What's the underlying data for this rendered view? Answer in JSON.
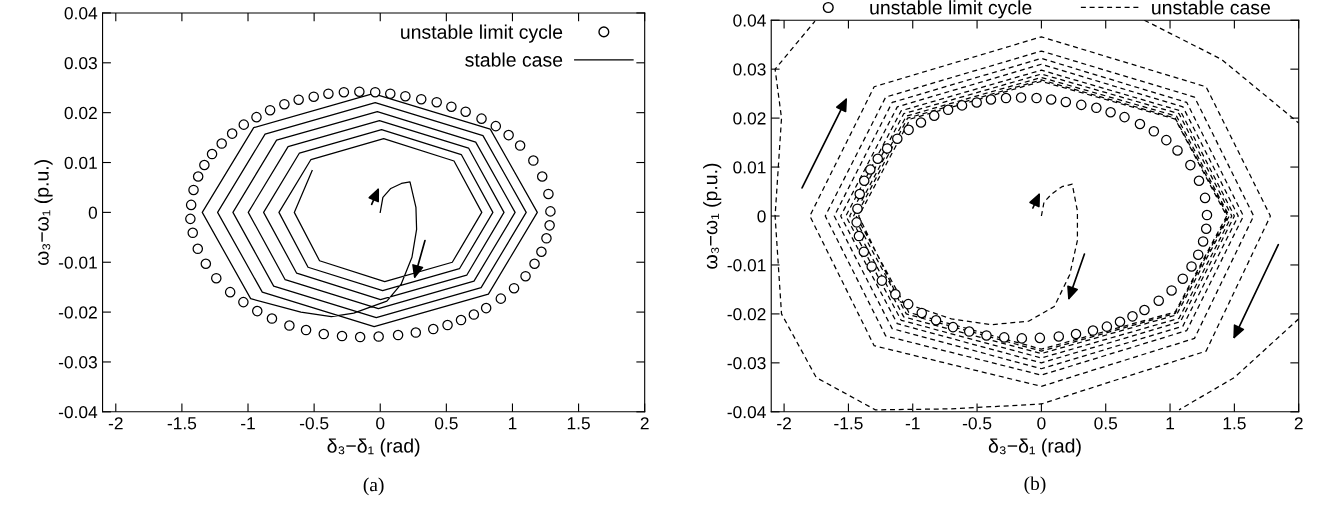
{
  "chart_data": [
    {
      "type": "line",
      "xlabel": "δ₃−δ₁ (rad)",
      "ylabel": "ω₃−ω₁ (p.u.)",
      "annotations": [
        "(a)"
      ],
      "xlim": [
        -2.1,
        2
      ],
      "ylim": [
        -0.04,
        0.04
      ],
      "xticks": [
        -2,
        -1.5,
        -1,
        -0.5,
        0,
        0.5,
        1,
        1.5,
        2
      ],
      "yticks": [
        -0.04,
        -0.03,
        -0.02,
        -0.01,
        0,
        0.01,
        0.02,
        0.03,
        0.04
      ],
      "grid": false,
      "legend": "top right",
      "series": [
        {
          "name": "unstable limit cycle",
          "type": "scatter",
          "marker": "circle",
          "color": "#000000",
          "x": [
            -0.617,
            -0.503,
            -0.392,
            -0.275,
            -0.158,
            -0.038,
            0.076,
            0.19,
            0.31,
            0.427,
            0.538,
            0.646,
            0.766,
            0.874,
            0.971,
            1.058,
            1.158,
            1.225,
            1.272,
            1.287,
            1.281,
            1.257,
            1.219,
            1.167,
            1.099,
            1.012,
            0.912,
            0.801,
            0.708,
            0.611,
            0.509,
            0.401,
            0.269,
            0.135,
            -0.012,
            -0.152,
            -0.289,
            -0.427,
            -0.561,
            -0.687,
            -0.819,
            -0.93,
            -1.035,
            -1.135,
            -1.24,
            -1.319,
            -1.38,
            -1.418,
            -1.436,
            -1.43,
            -1.412,
            -1.377,
            -1.33,
            -1.272,
            -1.199,
            -1.12,
            -1.032,
            -0.936,
            -0.833,
            -0.725
          ],
          "values": [
            0.0226,
            0.0232,
            0.0238,
            0.0241,
            0.0242,
            0.0241,
            0.0238,
            0.0233,
            0.0227,
            0.0221,
            0.0212,
            0.0202,
            0.0188,
            0.0173,
            0.0155,
            0.0134,
            0.0104,
            0.0072,
            0.0037,
            0.0002,
            -0.0026,
            -0.0052,
            -0.0079,
            -0.0103,
            -0.0128,
            -0.0152,
            -0.0173,
            -0.0192,
            -0.0205,
            -0.0216,
            -0.0226,
            -0.0234,
            -0.0241,
            -0.0246,
            -0.0249,
            -0.025,
            -0.0248,
            -0.0244,
            -0.0236,
            -0.0227,
            -0.0213,
            -0.0198,
            -0.018,
            -0.016,
            -0.0132,
            -0.0103,
            -0.0073,
            -0.0041,
            -0.0013,
            0.0015,
            0.0045,
            0.0072,
            0.0095,
            0.0117,
            0.0138,
            0.0158,
            0.0176,
            0.0191,
            0.0205,
            0.0217
          ]
        },
        {
          "name": "stable case",
          "line_style": "solid",
          "marker": "none",
          "color": "#000000",
          "x": [
            0,
            0.02,
            0.08,
            0.16,
            0.225,
            0.27,
            0.275,
            0.24,
            0.158,
            0.05,
            -0.076,
            -0.2,
            -0.37,
            -0.6,
            -0.98,
            -1.346,
            -0.957,
            -0.054,
            0.832,
            1.188,
            0.818,
            -0.046,
            -0.892,
            -1.23,
            -0.871,
            -0.038,
            0.777,
            1.104,
            0.763,
            -0.03,
            -0.806,
            -1.114,
            -0.784,
            -0.022,
            0.722,
            1.02,
            0.709,
            -0.014,
            -0.719,
            -0.998,
            -0.697,
            -0.006,
            0.668,
            0.936,
            0.654,
            0.002,
            -0.632,
            -0.882,
            -0.611,
            0.01,
            0.613,
            0.852,
            0.599,
            0.018,
            -0.546,
            -0.766,
            -0.524,
            0.026,
            0.558,
            0.768,
            0.545,
            0.034,
            -0.459,
            -0.65,
            -0.515
          ],
          "values": [
            0,
            0.003,
            0.0048,
            0.0058,
            0.0061,
            0.001,
            -0.0034,
            -0.009,
            -0.0144,
            -0.0178,
            -0.019,
            -0.0202,
            -0.0209,
            -0.02,
            -0.0173,
            0,
            0.017,
            0.0238,
            0.0167,
            0,
            -0.0164,
            -0.0229,
            -0.016,
            0,
            0.0157,
            0.022,
            0.0154,
            0,
            -0.0151,
            -0.0211,
            -0.0148,
            0,
            0.0145,
            0.0202,
            0.0141,
            0,
            -0.0138,
            -0.0193,
            -0.0135,
            0,
            0.0132,
            0.0184,
            0.0129,
            0,
            -0.0126,
            -0.0175,
            -0.0122,
            0,
            0.0119,
            0.0166,
            0.0116,
            0,
            -0.0113,
            -0.0157,
            -0.011,
            0,
            0.0106,
            0.0148,
            0.0103,
            0,
            -0.01,
            -0.0139,
            -0.0097,
            0,
            0.0084
          ]
        }
      ]
    },
    {
      "type": "line",
      "xlabel": "δ₃−δ₁ (rad)",
      "ylabel": "ω₃−ω₁ (p.u.)",
      "annotations": [
        "(b)"
      ],
      "xlim": [
        -2.1,
        2
      ],
      "ylim": [
        -0.04,
        0.04
      ],
      "xticks": [
        -2,
        -1.5,
        -1,
        -0.5,
        0,
        0.5,
        1,
        1.5,
        2
      ],
      "yticks": [
        -0.04,
        -0.03,
        -0.02,
        -0.01,
        0,
        0.01,
        0.02,
        0.03,
        0.04
      ],
      "grid": false,
      "legend": "top",
      "series": [
        {
          "name": "unstable limit cycle",
          "type": "scatter",
          "marker": "circle",
          "color": "#000000",
          "x": [
            -0.617,
            -0.503,
            -0.392,
            -0.275,
            -0.158,
            -0.038,
            0.076,
            0.19,
            0.31,
            0.427,
            0.538,
            0.646,
            0.766,
            0.874,
            0.971,
            1.058,
            1.158,
            1.225,
            1.272,
            1.287,
            1.281,
            1.257,
            1.219,
            1.167,
            1.099,
            1.012,
            0.912,
            0.801,
            0.708,
            0.611,
            0.509,
            0.401,
            0.269,
            0.135,
            -0.012,
            -0.152,
            -0.289,
            -0.427,
            -0.561,
            -0.687,
            -0.819,
            -0.93,
            -1.035,
            -1.135,
            -1.24,
            -1.319,
            -1.38,
            -1.418,
            -1.436,
            -1.43,
            -1.412,
            -1.377,
            -1.33,
            -1.272,
            -1.199,
            -1.12,
            -1.032,
            -0.936,
            -0.833,
            -0.725
          ],
          "values": [
            0.0226,
            0.0232,
            0.0238,
            0.0241,
            0.0242,
            0.0241,
            0.0238,
            0.0233,
            0.0227,
            0.0221,
            0.0212,
            0.0202,
            0.0188,
            0.0173,
            0.0155,
            0.0134,
            0.0104,
            0.0072,
            0.0037,
            0.0002,
            -0.0026,
            -0.0052,
            -0.0079,
            -0.0103,
            -0.0128,
            -0.0152,
            -0.0173,
            -0.0192,
            -0.0205,
            -0.0216,
            -0.0226,
            -0.0234,
            -0.0241,
            -0.0246,
            -0.0249,
            -0.025,
            -0.0248,
            -0.0244,
            -0.0236,
            -0.0227,
            -0.0213,
            -0.0198,
            -0.018,
            -0.016,
            -0.0132,
            -0.0103,
            -0.0073,
            -0.0041,
            -0.0013,
            0.0015,
            0.0045,
            0.0072,
            0.0095,
            0.0117,
            0.0138,
            0.0158,
            0.0176,
            0.0191,
            0.0205,
            0.0217
          ]
        },
        {
          "name": "unstable case",
          "line_style": "dashed",
          "marker": "none",
          "color": "#000000",
          "x": [
            0,
            0.02,
            0.08,
            0.16,
            0.24,
            0.28,
            0.28,
            0.22,
            0.1,
            -0.1,
            -0.39,
            -0.7,
            -1.1,
            -1.42,
            -1.02,
            0,
            1.04,
            1.44,
            1.04,
            0,
            -1.03,
            -1.44,
            -1.04,
            0,
            1.04,
            1.45,
            1.04,
            0,
            -1.05,
            -1.46,
            -1.05,
            0,
            1.05,
            1.46,
            1.05,
            0,
            -1.07,
            -1.49,
            -1.07,
            0,
            1.07,
            1.48,
            1.07,
            0,
            -1.09,
            -1.52,
            -1.09,
            0,
            1.08,
            1.5,
            1.08,
            0,
            -1.12,
            -1.56,
            -1.12,
            0,
            1.1,
            1.53,
            1.1,
            0,
            -1.16,
            -1.61,
            -1.16,
            0,
            1.13,
            1.57,
            1.13,
            0,
            -1.21,
            -1.68,
            -1.21,
            0,
            1.19,
            1.65,
            1.19,
            0,
            -1.3,
            -1.8,
            -1.3,
            0,
            1.28,
            1.78,
            1.28,
            0,
            -0.7,
            -1.29,
            -1.75,
            -2.02,
            -2.07,
            -2.02,
            -2.07,
            -1.76,
            null,
            0.8,
            1.4,
            2,
            null,
            2,
            1.5,
            1.07
          ],
          "values": [
            0,
            0.0028,
            0.0045,
            0.006,
            0.0065,
            0.001,
            -0.005,
            -0.012,
            -0.0185,
            -0.0215,
            -0.0222,
            -0.021,
            -0.0175,
            0,
            0.0198,
            0.0275,
            0.0198,
            0,
            -0.0196,
            -0.0272,
            -0.0197,
            0,
            0.02,
            0.0278,
            0.02,
            0,
            -0.0199,
            -0.0276,
            -0.02,
            0,
            0.0204,
            0.0283,
            0.0204,
            0,
            -0.0202,
            -0.0281,
            -0.0206,
            0,
            0.0209,
            0.029,
            0.0209,
            0,
            -0.0209,
            -0.029,
            -0.0213,
            0,
            0.0215,
            0.0298,
            0.0215,
            0,
            -0.0216,
            -0.03,
            -0.022,
            0,
            0.0223,
            0.031,
            0.0223,
            0,
            -0.0225,
            -0.0312,
            -0.023,
            0,
            0.0232,
            0.0322,
            0.0232,
            0,
            -0.0234,
            -0.0325,
            -0.0245,
            0,
            0.0243,
            0.0337,
            0.0243,
            0,
            -0.025,
            -0.0348,
            -0.0265,
            0,
            0.0264,
            0.0366,
            0.0264,
            0,
            -0.0276,
            -0.0384,
            -0.0394,
            -0.0396,
            -0.033,
            -0.02,
            0,
            0.02,
            0.03,
            0.0398,
            null,
            0.04,
            0.032,
            0.019,
            null,
            -0.021,
            -0.033,
            -0.0396
          ]
        }
      ]
    }
  ]
}
